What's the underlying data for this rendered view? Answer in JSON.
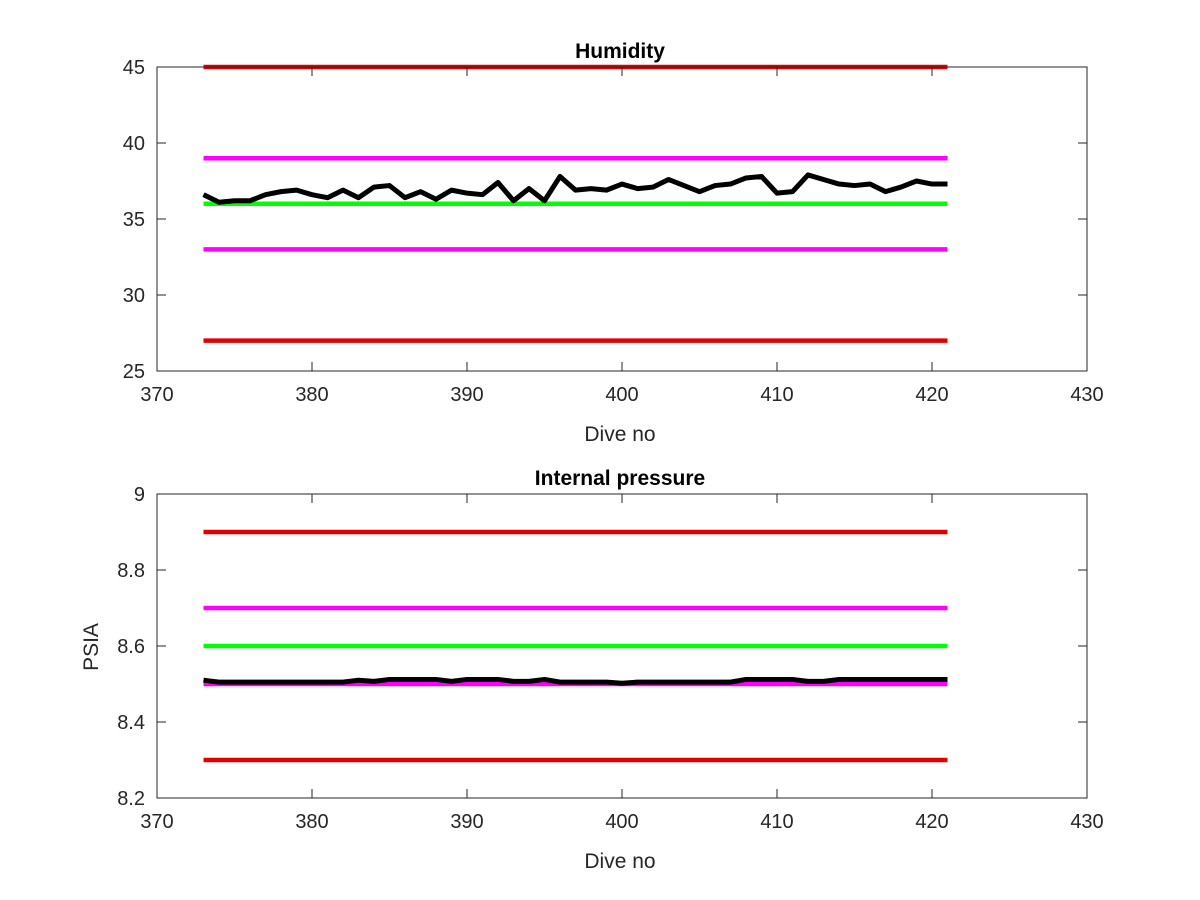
{
  "colors": {
    "limit_red": "#e00000",
    "limit_magenta": "#ff00ff",
    "target_green": "#00ff00",
    "data_black": "#000000",
    "axis": "#262626"
  },
  "chart_data": [
    {
      "type": "line",
      "title": "Humidity",
      "xlabel": "Dive no",
      "ylabel": "",
      "xlim": [
        370,
        430
      ],
      "ylim": [
        25,
        45
      ],
      "xticks": [
        370,
        380,
        390,
        400,
        410,
        420,
        430
      ],
      "yticks": [
        25,
        30,
        35,
        40,
        45
      ],
      "xtick_labels": [
        "370",
        "380",
        "390",
        "400",
        "410",
        "420",
        "430"
      ],
      "ytick_labels": [
        "25",
        "30",
        "35",
        "40",
        "45"
      ],
      "grid": false,
      "series": [
        {
          "role": "limit",
          "color": "#e00000",
          "x": [
            373,
            421
          ],
          "y": [
            45,
            45
          ]
        },
        {
          "role": "limit",
          "color": "#ff00ff",
          "x": [
            373,
            421
          ],
          "y": [
            39,
            39
          ]
        },
        {
          "role": "target",
          "color": "#00ff00",
          "x": [
            373,
            421
          ],
          "y": [
            36,
            36
          ]
        },
        {
          "role": "limit",
          "color": "#ff00ff",
          "x": [
            373,
            421
          ],
          "y": [
            33,
            33
          ]
        },
        {
          "role": "limit",
          "color": "#e00000",
          "x": [
            373,
            421
          ],
          "y": [
            27,
            27
          ]
        },
        {
          "role": "data",
          "color": "#000000",
          "x": [
            373,
            374,
            375,
            376,
            377,
            378,
            379,
            380,
            381,
            382,
            383,
            384,
            385,
            386,
            387,
            388,
            389,
            390,
            391,
            392,
            393,
            394,
            395,
            396,
            397,
            398,
            399,
            400,
            401,
            402,
            403,
            404,
            405,
            406,
            407,
            408,
            409,
            410,
            411,
            412,
            413,
            414,
            415,
            416,
            417,
            418,
            419,
            420,
            421
          ],
          "y": [
            36.6,
            36.1,
            36.2,
            36.2,
            36.6,
            36.8,
            36.9,
            36.6,
            36.4,
            36.9,
            36.4,
            37.1,
            37.2,
            36.4,
            36.8,
            36.3,
            36.9,
            36.7,
            36.6,
            37.4,
            36.2,
            37.0,
            36.2,
            37.8,
            36.9,
            37.0,
            36.9,
            37.3,
            37.0,
            37.1,
            37.6,
            37.2,
            36.8,
            37.2,
            37.3,
            37.7,
            37.8,
            36.7,
            36.8,
            37.9,
            37.6,
            37.3,
            37.2,
            37.3,
            36.8,
            37.1,
            37.5,
            37.3,
            37.3
          ]
        }
      ]
    },
    {
      "type": "line",
      "title": "Internal pressure",
      "xlabel": "Dive no",
      "ylabel": "PSIA",
      "xlim": [
        370,
        430
      ],
      "ylim": [
        8.2,
        9.0
      ],
      "xticks": [
        370,
        380,
        390,
        400,
        410,
        420,
        430
      ],
      "yticks": [
        8.2,
        8.4,
        8.6,
        8.8,
        9.0
      ],
      "xtick_labels": [
        "370",
        "380",
        "390",
        "400",
        "410",
        "420",
        "430"
      ],
      "ytick_labels": [
        "8.2",
        "8.4",
        "8.6",
        "8.8",
        "9"
      ],
      "grid": false,
      "series": [
        {
          "role": "limit",
          "color": "#e00000",
          "x": [
            373,
            421
          ],
          "y": [
            8.9,
            8.9
          ]
        },
        {
          "role": "limit",
          "color": "#ff00ff",
          "x": [
            373,
            421
          ],
          "y": [
            8.7,
            8.7
          ]
        },
        {
          "role": "target",
          "color": "#00ff00",
          "x": [
            373,
            421
          ],
          "y": [
            8.6,
            8.6
          ]
        },
        {
          "role": "limit",
          "color": "#ff00ff",
          "x": [
            373,
            421
          ],
          "y": [
            8.5,
            8.5
          ]
        },
        {
          "role": "limit",
          "color": "#e00000",
          "x": [
            373,
            421
          ],
          "y": [
            8.3,
            8.3
          ]
        },
        {
          "role": "data",
          "color": "#000000",
          "x": [
            373,
            374,
            375,
            376,
            377,
            378,
            379,
            380,
            381,
            382,
            383,
            384,
            385,
            386,
            387,
            388,
            389,
            390,
            391,
            392,
            393,
            394,
            395,
            396,
            397,
            398,
            399,
            400,
            401,
            402,
            403,
            404,
            405,
            406,
            407,
            408,
            409,
            410,
            411,
            412,
            413,
            414,
            415,
            416,
            417,
            418,
            419,
            420,
            421
          ],
          "y": [
            8.51,
            8.505,
            8.505,
            8.505,
            8.505,
            8.505,
            8.505,
            8.505,
            8.505,
            8.505,
            8.51,
            8.507,
            8.512,
            8.512,
            8.512,
            8.512,
            8.507,
            8.512,
            8.512,
            8.512,
            8.507,
            8.507,
            8.512,
            8.505,
            8.505,
            8.505,
            8.505,
            8.502,
            8.505,
            8.505,
            8.505,
            8.505,
            8.505,
            8.505,
            8.505,
            8.512,
            8.512,
            8.512,
            8.512,
            8.507,
            8.507,
            8.512,
            8.512,
            8.512,
            8.512,
            8.512,
            8.512,
            8.512,
            8.512
          ]
        }
      ]
    }
  ]
}
